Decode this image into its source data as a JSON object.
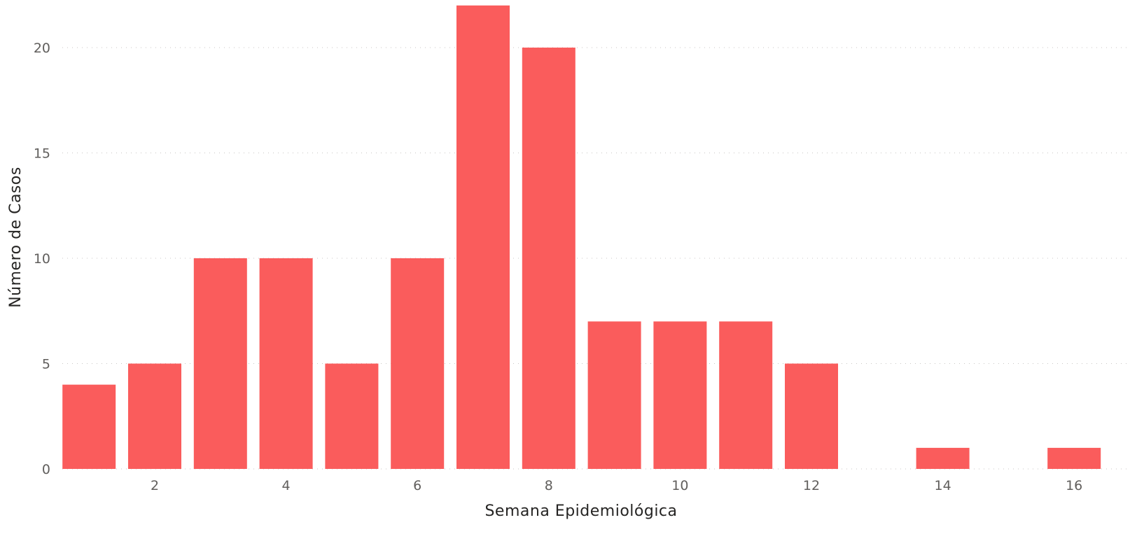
{
  "chart_data": {
    "type": "bar",
    "title": "",
    "xlabel": "Semana Epidemiológica",
    "ylabel": "Número de Casos",
    "x": [
      1,
      2,
      3,
      4,
      5,
      6,
      7,
      8,
      9,
      10,
      11,
      12,
      13,
      14,
      15,
      16
    ],
    "values": [
      4,
      5,
      10,
      10,
      5,
      10,
      22,
      20,
      7,
      7,
      7,
      5,
      0,
      1,
      0,
      1
    ],
    "x_ticks": [
      2,
      4,
      6,
      8,
      10,
      12,
      14,
      16
    ],
    "y_ticks": [
      0,
      5,
      10,
      15,
      20
    ],
    "ylim": [
      0,
      22
    ],
    "grid": true,
    "bar_color": "#fa5c5c",
    "gridline_color": "#c8c6c4"
  }
}
